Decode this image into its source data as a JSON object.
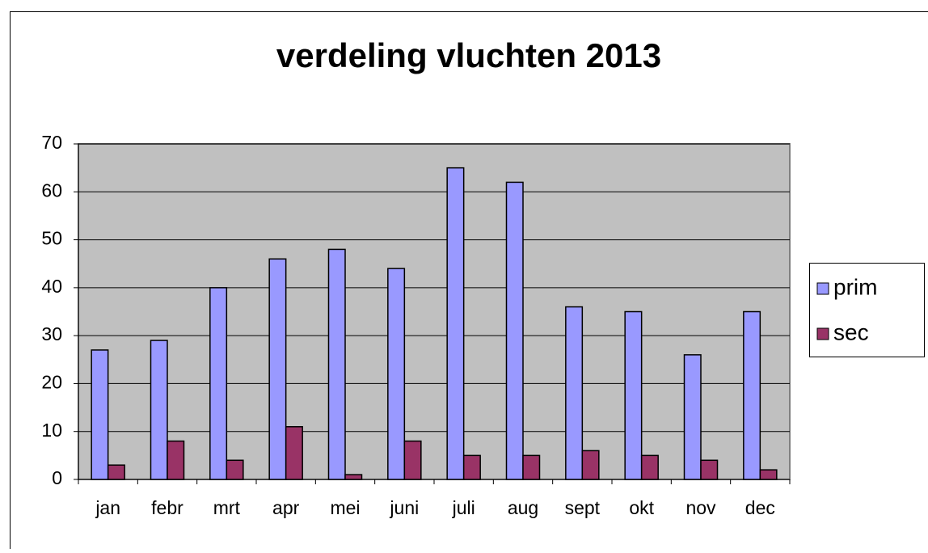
{
  "chart_data": {
    "type": "bar",
    "title": "verdeling vluchten 2013",
    "categories": [
      "jan",
      "febr",
      "mrt",
      "apr",
      "mei",
      "juni",
      "juli",
      "aug",
      "sept",
      "okt",
      "nov",
      "dec"
    ],
    "series": [
      {
        "name": "prim",
        "color": "#9999ff",
        "values": [
          27,
          29,
          40,
          46,
          48,
          44,
          65,
          62,
          36,
          35,
          26,
          35
        ]
      },
      {
        "name": "sec",
        "color": "#993366",
        "values": [
          3,
          8,
          4,
          11,
          1,
          8,
          5,
          5,
          6,
          5,
          4,
          2
        ]
      }
    ],
    "ylim": [
      0,
      70
    ],
    "yticks": [
      0,
      10,
      20,
      30,
      40,
      50,
      60,
      70
    ],
    "grid": true,
    "legend": "right"
  }
}
